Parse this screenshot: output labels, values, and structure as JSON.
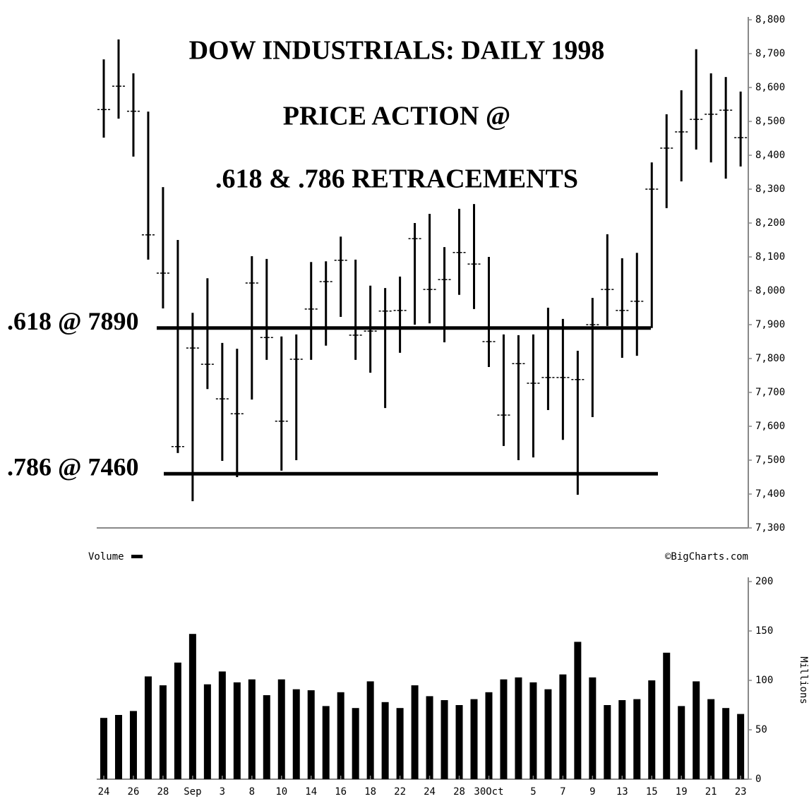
{
  "chart_data": [
    {
      "type": "ohlc",
      "title": "DOW INDUSTRIALS: DAILY 1998",
      "subtitle": [
        "PRICE ACTION @",
        ".618 & .786 RETRACEMENTS"
      ],
      "levels": [
        {
          "label": ".618 @ 7890",
          "value": 7890
        },
        {
          "label": ".786 @ 7460",
          "value": 7460
        }
      ],
      "color": "#000000",
      "high": [
        8683,
        8742,
        8642,
        8529,
        8306,
        8150,
        7935,
        8037,
        7846,
        7829,
        8102,
        8094,
        7865,
        7871,
        8085,
        8087,
        8160,
        8092,
        8015,
        8008,
        8042,
        8200,
        8227,
        8129,
        8242,
        8256,
        8100,
        7871,
        7869,
        7871,
        7950,
        7917,
        7823,
        7979,
        8167,
        8096,
        8112,
        8379,
        8521,
        8592,
        8713,
        8642,
        8631,
        8588
      ],
      "low": [
        8452,
        8508,
        8396,
        8092,
        7948,
        7521,
        7379,
        7710,
        7498,
        7450,
        7679,
        7796,
        7469,
        7500,
        7796,
        7838,
        7923,
        7796,
        7758,
        7654,
        7817,
        7900,
        7904,
        7848,
        7988,
        7946,
        7775,
        7542,
        7500,
        7508,
        7648,
        7560,
        7398,
        7627,
        7896,
        7802,
        7808,
        7890,
        8244,
        8323,
        8417,
        8379,
        8331,
        8367
      ],
      "close": [
        8535,
        8604,
        8530,
        8165,
        8052,
        7540,
        7831,
        7783,
        7681,
        7637,
        8023,
        7862,
        7615,
        7798,
        7946,
        8027,
        8090,
        7869,
        7881,
        7940,
        7942,
        8154,
        8004,
        8033,
        8113,
        8079,
        7850,
        7633,
        7785,
        7727,
        7744,
        7744,
        7738,
        7900,
        8004,
        7942,
        7969,
        8300,
        8421,
        8469,
        8506,
        8521,
        8533,
        8452
      ],
      "ylim": [
        7300,
        8800
      ],
      "yticks": [
        {
          "value": 7300,
          "label": "7,300"
        },
        {
          "value": 7400,
          "label": "7,400"
        },
        {
          "value": 7500,
          "label": "7,500"
        },
        {
          "value": 7600,
          "label": "7,600"
        },
        {
          "value": 7700,
          "label": "7,700"
        },
        {
          "value": 7800,
          "label": "7,800"
        },
        {
          "value": 7900,
          "label": "7,900"
        },
        {
          "value": 8000,
          "label": "8,000"
        },
        {
          "value": 8100,
          "label": "8,100"
        },
        {
          "value": 8200,
          "label": "8,200"
        },
        {
          "value": 8300,
          "label": "8,300"
        },
        {
          "value": 8400,
          "label": "8,400"
        },
        {
          "value": 8500,
          "label": "8,500"
        },
        {
          "value": 8600,
          "label": "8,600"
        },
        {
          "value": 8700,
          "label": "8,700"
        },
        {
          "value": 8800,
          "label": "8,800"
        }
      ]
    },
    {
      "type": "bar",
      "source": "©BigCharts.com",
      "ylabel": "Millions",
      "categories": [
        "24",
        null,
        "26",
        null,
        "28",
        null,
        "Sep",
        null,
        "3",
        null,
        "8",
        null,
        "10",
        null,
        "14",
        null,
        "16",
        null,
        "18",
        null,
        "22",
        null,
        "24",
        null,
        "28",
        null,
        "30Oct",
        null,
        null,
        "5",
        null,
        "7",
        null,
        "9",
        null,
        "13",
        null,
        "15",
        null,
        "19",
        null,
        "21",
        null,
        "23"
      ],
      "series": [
        {
          "name": "Volume",
          "color": "#000000",
          "values": [
            62,
            65,
            69,
            104,
            95,
            118,
            147,
            96,
            109,
            98,
            101,
            85,
            101,
            91,
            90,
            74,
            88,
            72,
            99,
            78,
            72,
            95,
            84,
            80,
            75,
            81,
            88,
            101,
            103,
            98,
            91,
            106,
            139,
            103,
            75,
            80,
            81,
            100,
            128,
            74,
            99,
            81,
            72,
            66
          ]
        }
      ],
      "ylim": [
        0,
        200
      ],
      "yticks": [
        0,
        50,
        100,
        150,
        200
      ]
    }
  ]
}
